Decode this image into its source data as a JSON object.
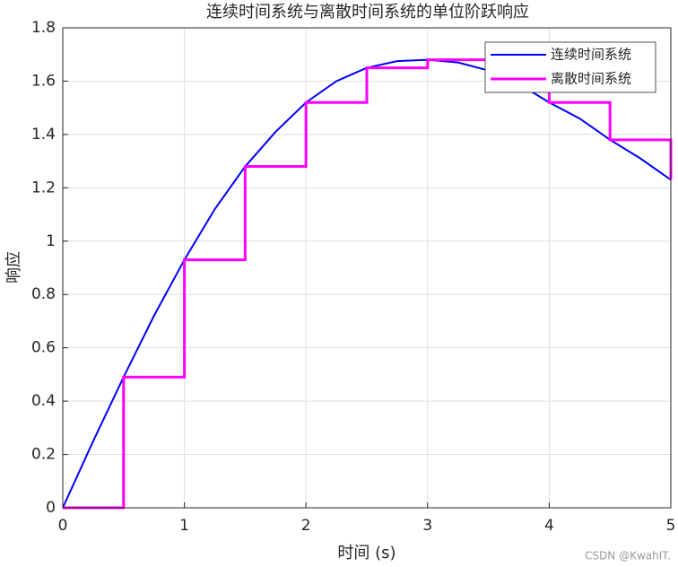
{
  "chart_data": {
    "type": "line",
    "title": "连续时间系统与离散时间系统的单位阶跃响应",
    "xlabel": "时间 (s)",
    "ylabel": "响应",
    "watermark": "CSDN @KwahIT.",
    "xlim": [
      0,
      5
    ],
    "ylim": [
      0,
      1.8
    ],
    "xticks": [
      0,
      1,
      2,
      3,
      4,
      5
    ],
    "yticks": [
      0,
      0.2,
      0.4,
      0.6,
      0.8,
      1,
      1.2,
      1.4,
      1.6,
      1.8
    ],
    "grid": true,
    "legend": "northeast",
    "series": [
      {
        "name": "连续时间系统",
        "color": "#0000ff",
        "drawstyle": "default",
        "x": [
          0,
          0.25,
          0.5,
          0.75,
          1,
          1.25,
          1.5,
          1.75,
          2,
          2.25,
          2.5,
          2.75,
          3,
          3.25,
          3.5,
          3.75,
          4,
          4.25,
          4.5,
          4.75,
          5
        ],
        "values": [
          0,
          0.25,
          0.49,
          0.72,
          0.93,
          1.12,
          1.28,
          1.41,
          1.52,
          1.6,
          1.65,
          1.675,
          1.68,
          1.67,
          1.64,
          1.59,
          1.52,
          1.46,
          1.38,
          1.31,
          1.23
        ]
      },
      {
        "name": "离散时间系统",
        "color": "#ff00ff",
        "drawstyle": "steps-post",
        "x": [
          0,
          0.5,
          1,
          1.5,
          2,
          2.5,
          3,
          3.5,
          4,
          4.5,
          5
        ],
        "values": [
          0,
          0.49,
          0.93,
          1.28,
          1.52,
          1.65,
          1.68,
          1.64,
          1.52,
          1.38,
          1.23
        ]
      }
    ]
  }
}
